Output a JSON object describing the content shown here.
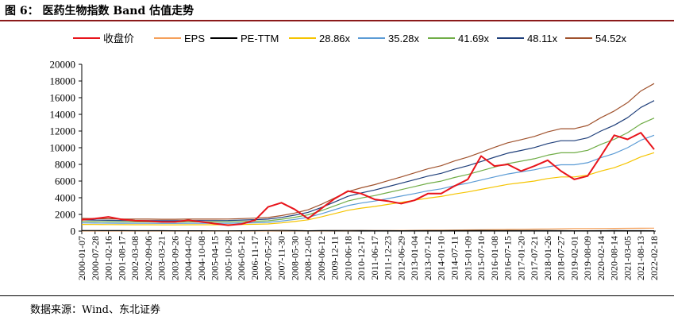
{
  "title": "图 6： 医药生物指数 Band 估值走势",
  "source": "数据来源：Wind、东北证券",
  "chart_data": {
    "type": "line",
    "ylim": [
      0,
      20000
    ],
    "yticks": [
      0,
      2000,
      4000,
      6000,
      8000,
      10000,
      12000,
      14000,
      16000,
      18000,
      20000
    ],
    "grid": false,
    "legend_position": "top",
    "xticks": [
      "2000-01-07",
      "2000-07-28",
      "2001-02-16",
      "2001-08-17",
      "2002-03-08",
      "2002-09-06",
      "2003-03-21",
      "2003-09-26",
      "2004-04-02",
      "2004-10-08",
      "2005-04-15",
      "2005-10-28",
      "2006-05-12",
      "2006-11-17",
      "2007-05-25",
      "2007-11-30",
      "2008-05-30",
      "2008-12-05",
      "2009-06-12",
      "2009-12-11",
      "2010-06-18",
      "2010-12-17",
      "2011-06-17",
      "2011-12-23",
      "2012-06-29",
      "2013-01-04",
      "2013-07-12",
      "2014-01-10",
      "2014-07-11",
      "2015-01-09",
      "2015-07-10",
      "2016-01-08",
      "2016-07-15",
      "2017-01-20",
      "2017-07-21",
      "2018-01-26",
      "2018-07-27",
      "2019-02-01",
      "2019-08-09",
      "2020-02-14",
      "2020-08-14",
      "2021-03-05",
      "2021-08-13",
      "2022-02-18"
    ],
    "series": [
      {
        "name": "收盘价",
        "color": "#e8141b",
        "width": 2,
        "values": [
          1350,
          1500,
          1700,
          1400,
          1250,
          1200,
          1100,
          1100,
          1300,
          1100,
          900,
          700,
          850,
          1300,
          2900,
          3400,
          2600,
          1500,
          2700,
          3900,
          4800,
          4500,
          3800,
          3600,
          3300,
          3700,
          4500,
          4500,
          5400,
          6200,
          9000,
          7800,
          8000,
          7200,
          7800,
          8500,
          7200,
          6200,
          6600,
          9000,
          11500,
          11000,
          11800,
          9800
        ]
      },
      {
        "name": "EPS",
        "color": "#f5a05a",
        "width": 1.2,
        "values": [
          20,
          20,
          20,
          20,
          20,
          20,
          20,
          20,
          20,
          20,
          20,
          20,
          20,
          20,
          20,
          25,
          30,
          35,
          40,
          45,
          50,
          55,
          60,
          70,
          80,
          90,
          100,
          110,
          120,
          140,
          160,
          180,
          200,
          220,
          240,
          260,
          280,
          300,
          300,
          310,
          320,
          330,
          340,
          350
        ]
      },
      {
        "name": "PE-TTM",
        "color": "#000000",
        "width": 1.2,
        "values": [
          70,
          65,
          60,
          55,
          50,
          45,
          45,
          40,
          40,
          35,
          30,
          30,
          35,
          45,
          70,
          80,
          60,
          40,
          55,
          60,
          65,
          60,
          50,
          45,
          40,
          45,
          50,
          50,
          55,
          60,
          75,
          65,
          65,
          55,
          55,
          55,
          45,
          40,
          40,
          45,
          55,
          50,
          45,
          40
        ]
      },
      {
        "name": "28.86x",
        "color": "#f5c400",
        "width": 1.2,
        "values": [
          800,
          790,
          780,
          770,
          760,
          760,
          750,
          750,
          760,
          760,
          760,
          770,
          790,
          820,
          860,
          980,
          1150,
          1350,
          1700,
          2100,
          2500,
          2750,
          2950,
          3200,
          3450,
          3700,
          3950,
          4150,
          4450,
          4700,
          5000,
          5300,
          5600,
          5800,
          6000,
          6300,
          6500,
          6500,
          6700,
          7200,
          7600,
          8200,
          8900,
          9400
        ]
      },
      {
        "name": "35.28x",
        "color": "#5b9bd5",
        "width": 1.2,
        "values": [
          980,
          965,
          955,
          945,
          935,
          930,
          920,
          920,
          930,
          930,
          930,
          945,
          965,
          1000,
          1050,
          1200,
          1400,
          1650,
          2080,
          2570,
          3060,
          3360,
          3600,
          3900,
          4200,
          4500,
          4830,
          5070,
          5450,
          5750,
          6120,
          6500,
          6850,
          7100,
          7350,
          7700,
          7950,
          7950,
          8200,
          8800,
          9300,
          10000,
          10900,
          11500
        ]
      },
      {
        "name": "41.69x",
        "color": "#70ad47",
        "width": 1.2,
        "values": [
          1160,
          1140,
          1130,
          1110,
          1100,
          1100,
          1080,
          1080,
          1100,
          1100,
          1100,
          1110,
          1140,
          1180,
          1240,
          1420,
          1660,
          1950,
          2450,
          3030,
          3610,
          3970,
          4260,
          4620,
          4970,
          5340,
          5710,
          5990,
          6430,
          6790,
          7230,
          7680,
          8090,
          8380,
          8680,
          9100,
          9390,
          9390,
          9690,
          10400,
          11000,
          11800,
          12850,
          13550
        ]
      },
      {
        "name": "48.11x",
        "color": "#1f3f7a",
        "width": 1.2,
        "values": [
          1340,
          1320,
          1300,
          1280,
          1270,
          1270,
          1250,
          1250,
          1270,
          1270,
          1270,
          1280,
          1320,
          1370,
          1440,
          1640,
          1910,
          2250,
          2830,
          3500,
          4170,
          4580,
          4920,
          5330,
          5740,
          6160,
          6590,
          6920,
          7420,
          7840,
          8340,
          8860,
          9340,
          9670,
          10020,
          10500,
          10840,
          10840,
          11180,
          12000,
          12700,
          13600,
          14830,
          15650
        ]
      },
      {
        "name": "54.52x",
        "color": "#a0522d",
        "width": 1.2,
        "values": [
          1520,
          1500,
          1480,
          1450,
          1440,
          1440,
          1420,
          1420,
          1440,
          1440,
          1440,
          1450,
          1500,
          1550,
          1630,
          1860,
          2160,
          2550,
          3210,
          3970,
          4730,
          5190,
          5570,
          6040,
          6500,
          6980,
          7470,
          7840,
          8410,
          8880,
          9450,
          10040,
          10590,
          10960,
          11350,
          11900,
          12280,
          12280,
          12670,
          13600,
          14400,
          15400,
          16800,
          17700
        ]
      }
    ]
  }
}
